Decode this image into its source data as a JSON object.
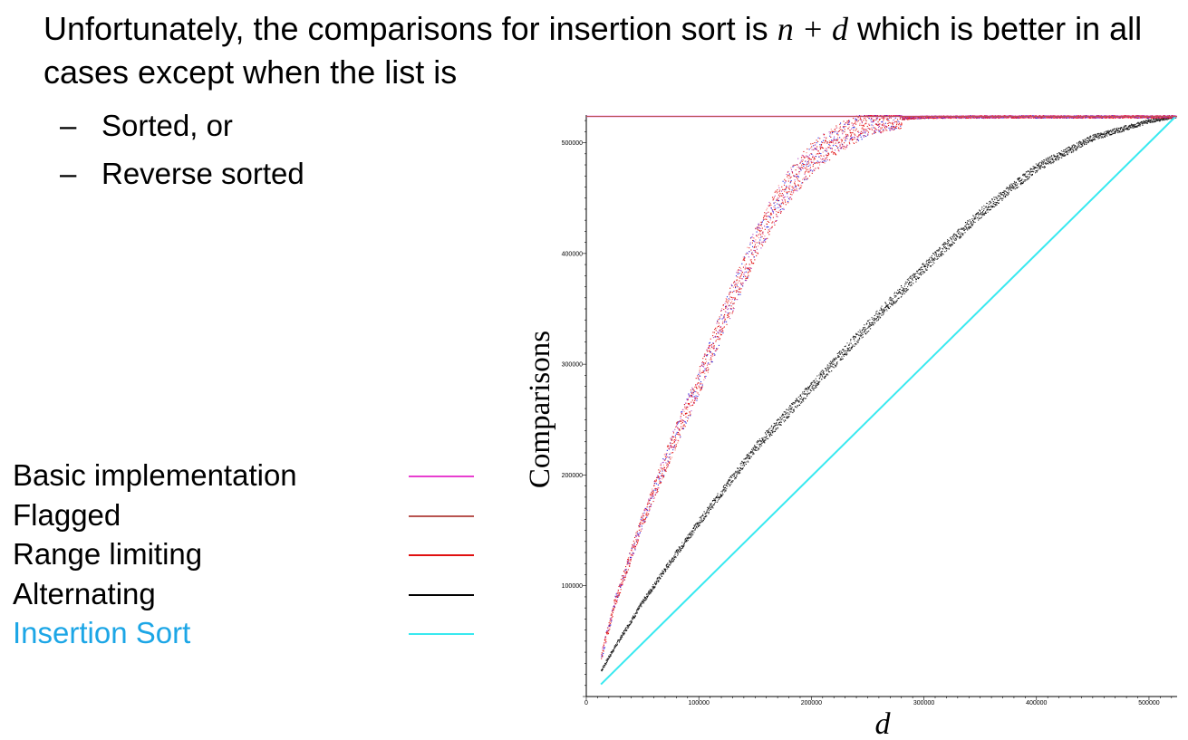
{
  "slide": {
    "heading_part1": "Unfortunately, the comparisons for insertion sort is ",
    "heading_math": "n + d",
    "heading_part2": " which is better in all cases except when the list is",
    "bullets": [
      {
        "dash": "–",
        "text": "Sorted, or"
      },
      {
        "dash": "–",
        "text": "Reverse sorted"
      }
    ]
  },
  "legend": [
    {
      "label": "Basic implementation",
      "color": "#e83fd0",
      "label_color": "#000000"
    },
    {
      "label": "Flagged",
      "color": "#b85450",
      "label_color": "#000000"
    },
    {
      "label": "Range limiting",
      "color": "#e01010",
      "label_color": "#000000"
    },
    {
      "label": "Alternating",
      "color": "#000000",
      "label_color": "#000000"
    },
    {
      "label": "Insertion Sort",
      "color": "#39e9f0",
      "label_color": "#1ca6e6"
    }
  ],
  "chart_data": {
    "type": "scatter",
    "xlabel": "d",
    "ylabel": "Comparisons",
    "xlim": [
      0,
      525000
    ],
    "ylim": [
      0,
      525000
    ],
    "x_ticks": [
      0,
      100000,
      200000,
      300000,
      400000,
      500000
    ],
    "x_tick_labels": [
      "0",
      "100000",
      "200000",
      "300000",
      "400000",
      "500000"
    ],
    "y_ticks": [
      100000,
      200000,
      300000,
      400000,
      500000
    ],
    "y_tick_labels": [
      "100000",
      "200000",
      "300000",
      "400000",
      "500000"
    ],
    "grid": false,
    "series": [
      {
        "name": "Basic implementation",
        "kind": "line",
        "color": "#e83fd0",
        "x": [
          0,
          525000
        ],
        "y": [
          523776,
          523776
        ]
      },
      {
        "name": "Flagged",
        "kind": "line",
        "color": "#b85450",
        "x": [
          0,
          525000
        ],
        "y": [
          523776,
          523776
        ]
      },
      {
        "name": "Range limiting",
        "kind": "scatter",
        "color": "#e01010",
        "x": [
          13000,
          25000,
          50000,
          75000,
          100000,
          125000,
          150000,
          175000,
          200000,
          225000,
          250000,
          275000,
          300000,
          350000,
          400000,
          450000,
          523776
        ],
        "y": [
          36000,
          85000,
          160000,
          225000,
          285000,
          350000,
          410000,
          455000,
          487000,
          505000,
          518000,
          522000,
          523500,
          523700,
          523776,
          523776,
          523776
        ]
      },
      {
        "name": "Alternating",
        "kind": "scatter",
        "color": "#000000",
        "x": [
          13000,
          25000,
          50000,
          75000,
          100000,
          150000,
          200000,
          250000,
          300000,
          350000,
          400000,
          450000,
          500000,
          523776
        ],
        "y": [
          24000,
          45000,
          86000,
          123000,
          158000,
          225000,
          280000,
          335000,
          388000,
          437000,
          478000,
          505000,
          520000,
          523776
        ]
      },
      {
        "name": "Insertion Sort",
        "kind": "line",
        "color": "#39e9f0",
        "x": [
          13000,
          523776
        ],
        "y": [
          11000,
          523776
        ]
      }
    ]
  }
}
